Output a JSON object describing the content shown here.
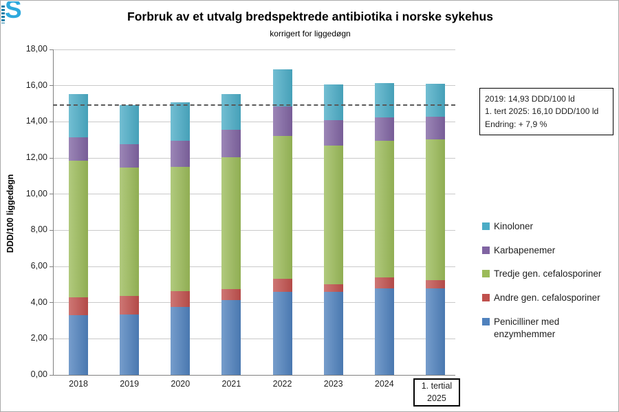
{
  "logo": {
    "text": "S"
  },
  "title": "Forbruk av et utvalg bredspektrede antibiotika i norske sykehus",
  "subtitle": "korrigert for liggedøgn",
  "annotation": {
    "line1": "2019: 14,93 DDD/100 ld",
    "line2": "1. tert 2025: 16,10 DDD/100 ld",
    "line3": "Endring: + 7,9 %"
  },
  "chart_data": {
    "type": "bar",
    "stacked": true,
    "title": "Forbruk av et utvalg bredspektrede antibiotika i norske sykehus",
    "subtitle": "korrigert for liggedøgn",
    "ylabel": "DDD/100 liggedøgn",
    "ylim": [
      0,
      18
    ],
    "ytick_step": 2,
    "grid": true,
    "legend_position": "right",
    "categories": [
      {
        "label": "2018"
      },
      {
        "label": "2019"
      },
      {
        "label": "2020"
      },
      {
        "label": "2021"
      },
      {
        "label": "2022"
      },
      {
        "label": "2023"
      },
      {
        "label": "2024"
      },
      {
        "label": "1. tertial",
        "label2": "2025",
        "boxed": true
      }
    ],
    "series": [
      {
        "name": "Penicilliner med enzymhemmer",
        "legend_lines": [
          "Penicilliner med",
          "enzymhemmer"
        ],
        "color": "#4F81BD",
        "values": [
          3.3,
          3.35,
          3.75,
          4.15,
          4.6,
          4.6,
          4.8,
          4.78
        ]
      },
      {
        "name": "Andre gen. cefalosporiner",
        "color": "#C0504D",
        "values": [
          1.0,
          1.0,
          0.9,
          0.6,
          0.7,
          0.4,
          0.6,
          0.45
        ]
      },
      {
        "name": "Tredje gen. cefalosporiner",
        "color": "#9BBB59",
        "values": [
          7.55,
          7.1,
          6.85,
          7.3,
          7.9,
          7.68,
          7.55,
          7.81
        ]
      },
      {
        "name": "Karbapenemer",
        "color": "#8064A2",
        "values": [
          1.3,
          1.3,
          1.45,
          1.5,
          1.65,
          1.4,
          1.3,
          1.25
        ]
      },
      {
        "name": "Kinoloner",
        "color": "#4BACC6",
        "values": [
          2.4,
          2.18,
          2.12,
          1.98,
          2.05,
          1.97,
          1.9,
          1.81
        ]
      }
    ],
    "totals": [
      15.55,
      14.93,
      15.07,
      15.53,
      16.9,
      16.05,
      16.15,
      16.1
    ],
    "reference_line": {
      "value": 14.93,
      "style": "dashed",
      "color": "#595959"
    }
  }
}
